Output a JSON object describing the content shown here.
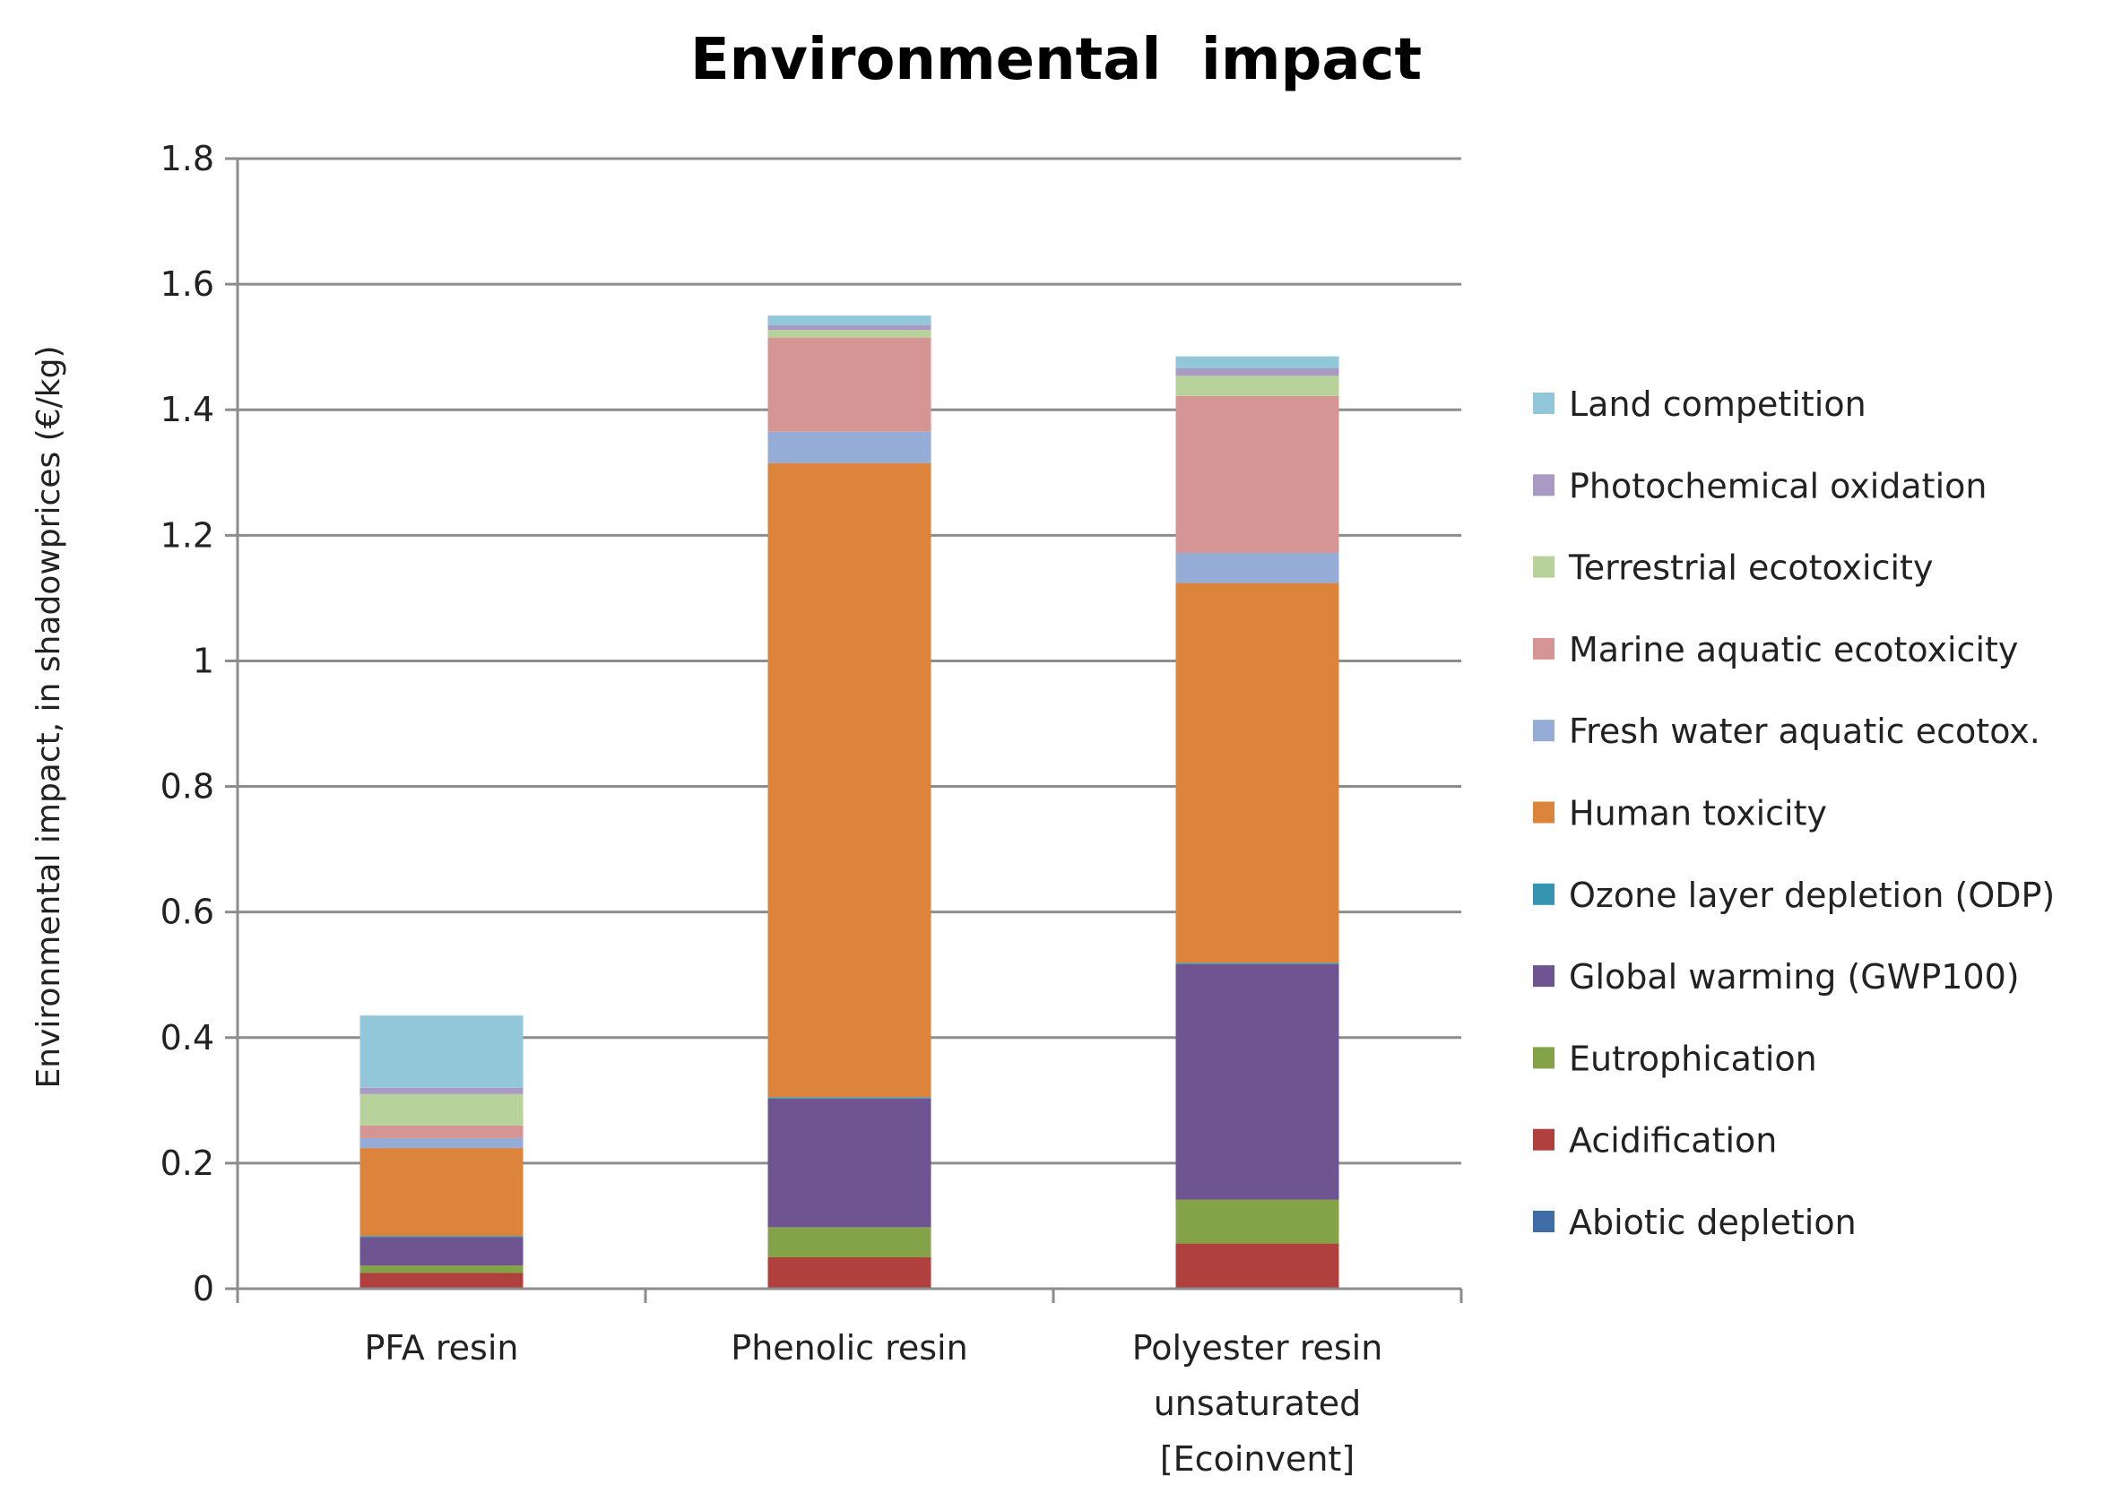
{
  "chart_data": {
    "type": "bar",
    "stacked": true,
    "title": "Environmental  impact",
    "xlabel": "",
    "ylabel": "Environmental impact, in shadowprices (€/kg)",
    "ylim": [
      0,
      1.8
    ],
    "yticks": [
      0,
      0.2,
      0.4,
      0.6,
      0.8,
      1,
      1.2,
      1.4,
      1.6,
      1.8
    ],
    "ytick_labels": [
      "0",
      "0.2",
      "0.4",
      "0.6",
      "0.8",
      "1",
      "1.2",
      "1.4",
      "1.6",
      "1.8"
    ],
    "grid": true,
    "legend_position": "right",
    "categories": [
      [
        "PFA resin"
      ],
      [
        "Phenolic resin"
      ],
      [
        "Polyester resin",
        "unsaturated",
        "[Ecoinvent]"
      ]
    ],
    "series": [
      {
        "name": "Abiotic depletion",
        "color": "#3f6da8",
        "values": [
          0.002,
          0.002,
          0.002
        ]
      },
      {
        "name": "Acidification",
        "color": "#b0403d",
        "values": [
          0.023,
          0.048,
          0.07
        ]
      },
      {
        "name": "Eutrophication",
        "color": "#84a247",
        "values": [
          0.012,
          0.048,
          0.07
        ]
      },
      {
        "name": "Global warming (GWP100)",
        "color": "#6e5591",
        "values": [
          0.045,
          0.205,
          0.375
        ]
      },
      {
        "name": "Ozone layer depletion (ODP)",
        "color": "#3594b0",
        "values": [
          0.002,
          0.002,
          0.002
        ]
      },
      {
        "name": "Human toxicity",
        "color": "#dc843c",
        "values": [
          0.14,
          1.01,
          0.605
        ]
      },
      {
        "name": "Fresh water aquatic ecotox.",
        "color": "#94acd6",
        "values": [
          0.016,
          0.05,
          0.048
        ]
      },
      {
        "name": "Marine aquatic ecotoxicity",
        "color": "#d59594",
        "values": [
          0.02,
          0.15,
          0.25
        ]
      },
      {
        "name": "Terrestrial ecotoxicity",
        "color": "#b7d29b",
        "values": [
          0.05,
          0.012,
          0.032
        ]
      },
      {
        "name": "Photochemical oxidation",
        "color": "#a99ac4",
        "values": [
          0.01,
          0.008,
          0.012
        ]
      },
      {
        "name": "Land competition",
        "color": "#92c6d9",
        "values": [
          0.115,
          0.015,
          0.019
        ]
      }
    ]
  }
}
